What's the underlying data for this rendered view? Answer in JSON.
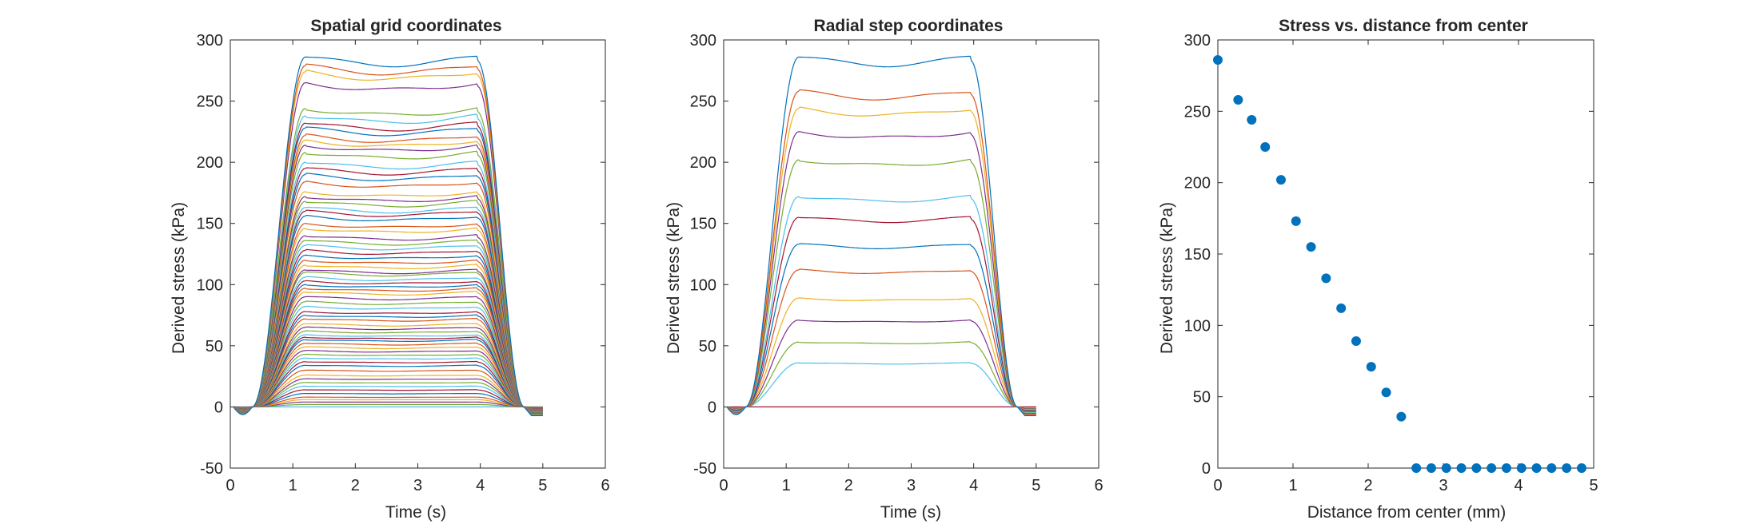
{
  "colors": [
    "#0072BD",
    "#D95319",
    "#EDB120",
    "#7E2F8E",
    "#77AC30",
    "#4DBEEE",
    "#A2142F"
  ],
  "chart_data": [
    {
      "type": "line",
      "title": "Spatial grid coordinates",
      "xlabel": "Time (s)",
      "ylabel": "Derived stress (kPa)",
      "xlim": [
        0,
        6
      ],
      "ylim": [
        -50,
        300
      ],
      "xticks": [
        0,
        1,
        2,
        3,
        4,
        5,
        6
      ],
      "yticks": [
        -50,
        0,
        50,
        100,
        150,
        200,
        250,
        300
      ],
      "grid": false,
      "profile": {
        "t_start": 0.05,
        "rise_begin": 0.35,
        "rise_end": 1.2,
        "fall_begin": 3.95,
        "fall_end": 4.7,
        "t_end": 5.0
      },
      "plateau_values": [
        286,
        279,
        274,
        265,
        244,
        238,
        232,
        228,
        222,
        218,
        214,
        208,
        200,
        195,
        190,
        184,
        176,
        172,
        168,
        163,
        160,
        156,
        150,
        146,
        140,
        136,
        132,
        128,
        124,
        120,
        116,
        112,
        110,
        106,
        103,
        100,
        97,
        94,
        90,
        86,
        82,
        78,
        75,
        72,
        68,
        65,
        62,
        59,
        57,
        55,
        52,
        49,
        46,
        43,
        40,
        37,
        34,
        30,
        26,
        23,
        20,
        17,
        14,
        11,
        8,
        6,
        4,
        2,
        0
      ]
    },
    {
      "type": "line",
      "title": "Radial step coordinates",
      "xlabel": "Time (s)",
      "ylabel": "Derived stress (kPa)",
      "xlim": [
        0,
        6
      ],
      "ylim": [
        -50,
        300
      ],
      "xticks": [
        0,
        1,
        2,
        3,
        4,
        5,
        6
      ],
      "yticks": [
        -50,
        0,
        50,
        100,
        150,
        200,
        250,
        300
      ],
      "grid": false,
      "profile": {
        "t_start": 0.05,
        "rise_begin": 0.35,
        "rise_end": 1.2,
        "fall_begin": 3.95,
        "fall_end": 4.7,
        "t_end": 5.0
      },
      "plateau_values": [
        286,
        258,
        244,
        225,
        202,
        172,
        155,
        133,
        112,
        89,
        71,
        53,
        36,
        0
      ]
    },
    {
      "type": "scatter",
      "title": "Stress vs. distance from center",
      "xlabel": "Distance from center (mm)",
      "ylabel": "Derived stress (kPa)",
      "xlim": [
        0,
        5
      ],
      "ylim": [
        0,
        300
      ],
      "xticks": [
        0,
        1,
        2,
        3,
        4,
        5
      ],
      "yticks": [
        0,
        50,
        100,
        150,
        200,
        250,
        300
      ],
      "grid": false,
      "x": [
        0,
        0.27,
        0.45,
        0.63,
        0.84,
        1.04,
        1.24,
        1.44,
        1.64,
        1.84,
        2.04,
        2.24,
        2.44,
        2.64,
        2.84,
        3.04,
        3.24,
        3.44,
        3.64,
        3.84,
        4.04,
        4.24,
        4.44,
        4.64,
        4.84
      ],
      "y": [
        286,
        258,
        244,
        225,
        202,
        173,
        155,
        133,
        112,
        89,
        71,
        53,
        36,
        0,
        0,
        0,
        0,
        0,
        0,
        0,
        0,
        0,
        0,
        0,
        0
      ]
    }
  ]
}
